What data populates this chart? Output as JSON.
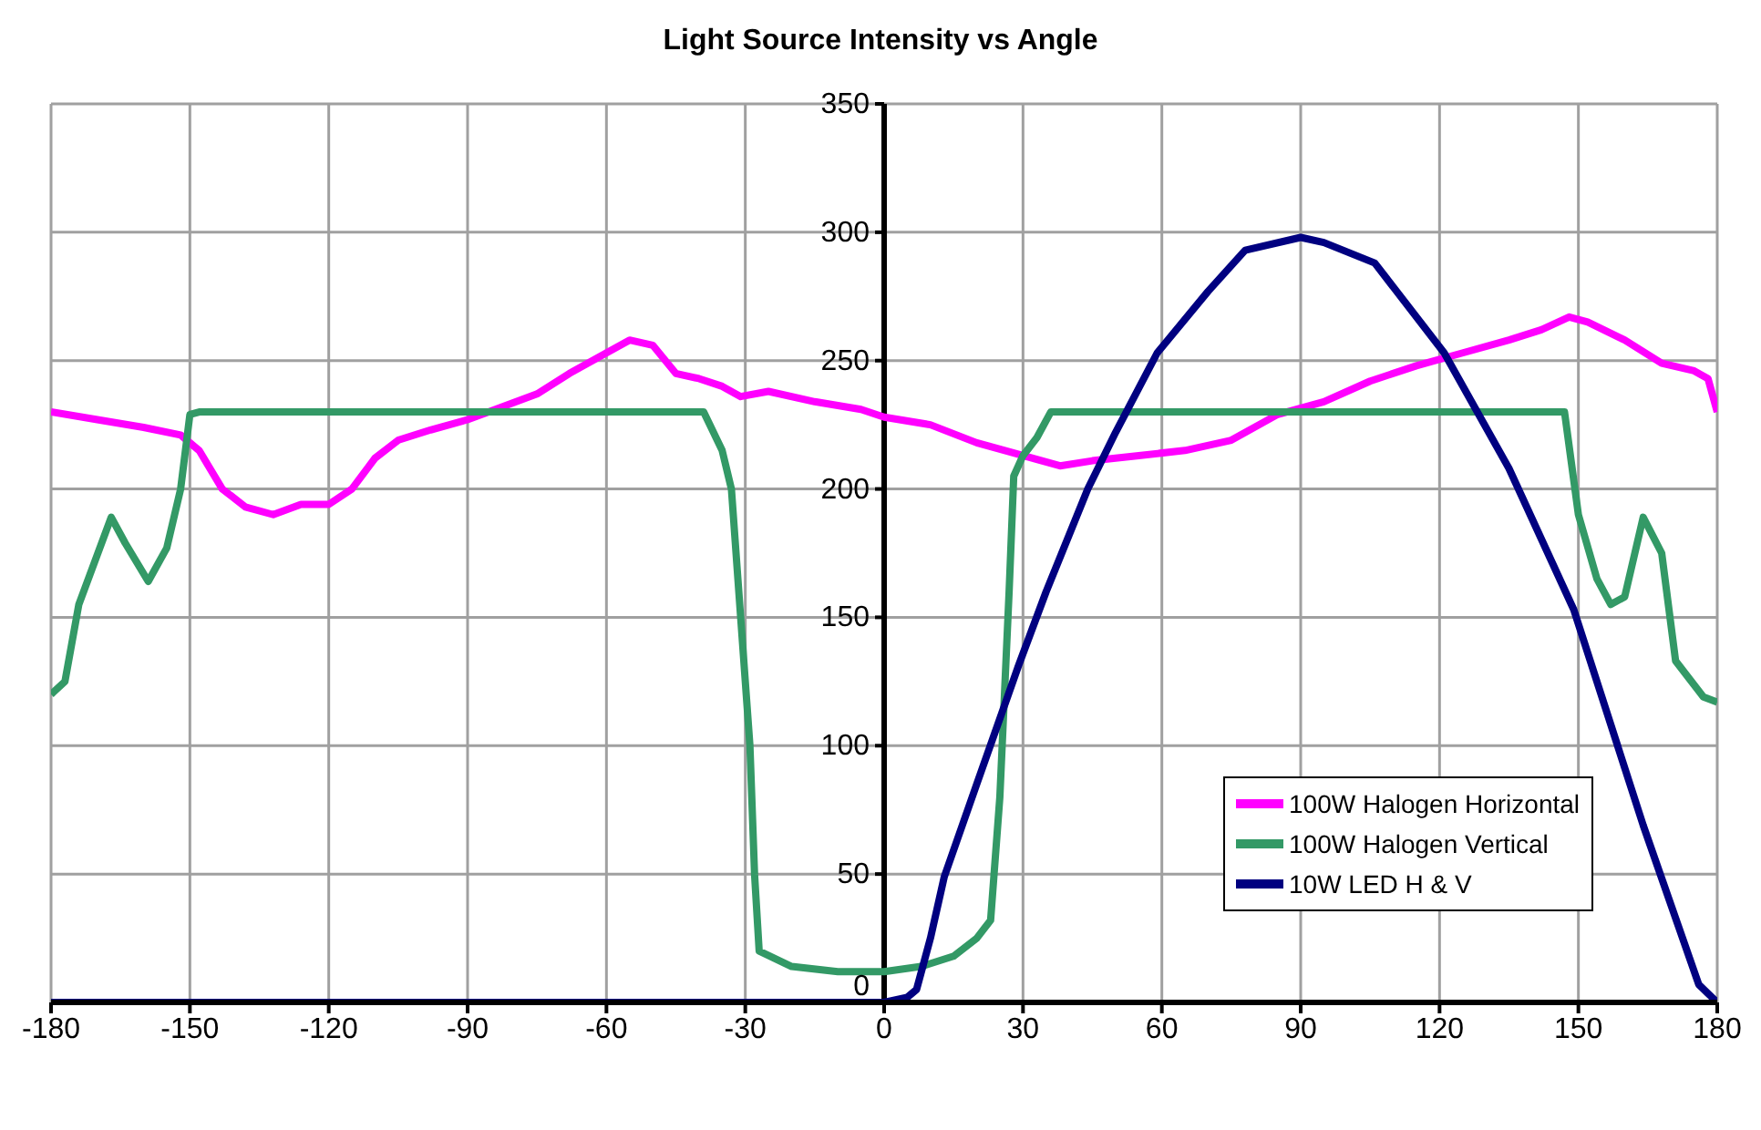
{
  "chart_data": {
    "type": "line",
    "title": "Light Source Intensity vs Angle",
    "xlim": [
      -180,
      180
    ],
    "xticks": [
      -180,
      -150,
      -120,
      -90,
      -60,
      -30,
      0,
      30,
      60,
      90,
      120,
      150,
      180
    ],
    "ylim": [
      0,
      350
    ],
    "yticks": [
      0,
      50,
      100,
      150,
      200,
      250,
      300,
      350
    ],
    "grid": true,
    "legend": "right",
    "marker": "none",
    "line_style": "solid",
    "series": [
      {
        "name": "100W Halogen Horizontal",
        "color": "#ff00ff",
        "x": [
          -180,
          -170,
          -160,
          -152,
          -148,
          -143,
          -138,
          -132,
          -126,
          -120,
          -115,
          -110,
          -105,
          -98,
          -90,
          -84,
          -75,
          -68,
          -60,
          -55,
          -50,
          -45,
          -40,
          -35,
          -31,
          -25,
          -15,
          -5,
          0,
          10,
          20,
          30,
          38,
          45,
          55,
          65,
          75,
          85,
          95,
          105,
          115,
          125,
          135,
          142,
          148,
          152,
          160,
          168,
          175,
          178,
          180
        ],
        "values": [
          230,
          227,
          224,
          221,
          215,
          200,
          193,
          190,
          194,
          194,
          200,
          212,
          219,
          223,
          227,
          231,
          237,
          245,
          253,
          258,
          256,
          245,
          243,
          240,
          236,
          238,
          234,
          231,
          228,
          225,
          218,
          213,
          209,
          211,
          213,
          215,
          219,
          229,
          234,
          242,
          248,
          253,
          258,
          262,
          267,
          265,
          258,
          249,
          246,
          243,
          230
        ]
      },
      {
        "name": "100W Halogen Vertical",
        "color": "#339966",
        "x": [
          -180,
          -177,
          -174,
          -167,
          -164,
          -159,
          -155,
          -152,
          -150,
          -148,
          -39,
          -35,
          -33,
          -31,
          -29,
          -28,
          -27,
          -20,
          -10,
          0,
          8,
          15,
          20,
          23,
          25,
          27,
          28,
          30,
          33,
          36,
          147,
          150,
          154,
          157,
          160,
          164,
          168,
          171,
          174,
          177,
          180
        ],
        "values": [
          120,
          125,
          155,
          189,
          179,
          164,
          177,
          200,
          229,
          230,
          230,
          215,
          200,
          150,
          100,
          50,
          20,
          14,
          12,
          12,
          14,
          18,
          25,
          32,
          80,
          160,
          205,
          213,
          220,
          230,
          230,
          190,
          165,
          155,
          158,
          189,
          175,
          133,
          126,
          119,
          117
        ]
      },
      {
        "name": "10W LED H & V",
        "color": "#000080",
        "x": [
          -180,
          0,
          5,
          7,
          10,
          13,
          20,
          29,
          35,
          44,
          50,
          59,
          70,
          78,
          90,
          95,
          106,
          121,
          135,
          149,
          164,
          176,
          180
        ],
        "values": [
          0,
          0,
          2,
          5,
          25,
          49,
          85,
          131,
          160,
          200,
          222,
          253,
          277,
          293,
          298,
          296,
          288,
          253,
          208,
          153,
          69,
          7,
          0
        ]
      }
    ]
  }
}
